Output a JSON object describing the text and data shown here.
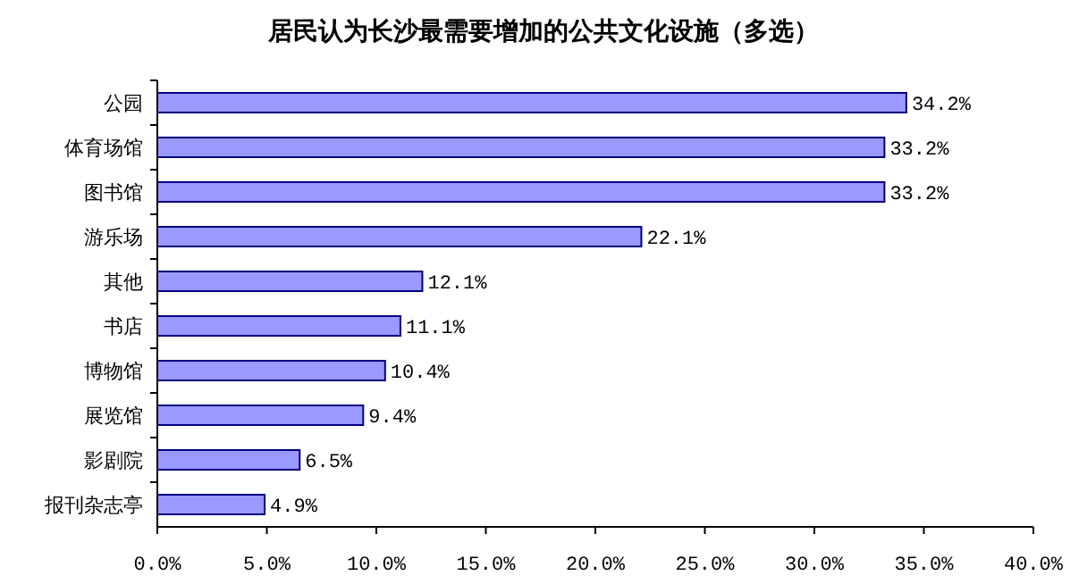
{
  "chart_data": {
    "type": "bar",
    "orientation": "horizontal",
    "title": "居民认为长沙最需要增加的公共文化设施（多选）",
    "categories": [
      "公园",
      "体育场馆",
      "图书馆",
      "游乐场",
      "其他",
      "书店",
      "博物馆",
      "展览馆",
      "影剧院",
      "报刊杂志亭"
    ],
    "values": [
      34.2,
      33.2,
      33.2,
      22.1,
      12.1,
      11.1,
      10.4,
      9.4,
      6.5,
      4.9
    ],
    "value_labels": [
      "34.2%",
      "33.2%",
      "33.2%",
      "22.1%",
      "12.1%",
      "11.1%",
      "10.4%",
      "9.4%",
      "6.5%",
      "4.9%"
    ],
    "color": "#9999ff",
    "xlim": [
      0,
      40
    ],
    "xticks": [
      {
        "value": 0,
        "label": "0.0%"
      },
      {
        "value": 5,
        "label": "5.0%"
      },
      {
        "value": 10,
        "label": "10.0%"
      },
      {
        "value": 15,
        "label": "15.0%"
      },
      {
        "value": 20,
        "label": "20.0%"
      },
      {
        "value": 25,
        "label": "25.0%"
      },
      {
        "value": 30,
        "label": "30.0%"
      },
      {
        "value": 35,
        "label": "35.0%"
      },
      {
        "value": 40,
        "label": "40.0%"
      }
    ]
  }
}
